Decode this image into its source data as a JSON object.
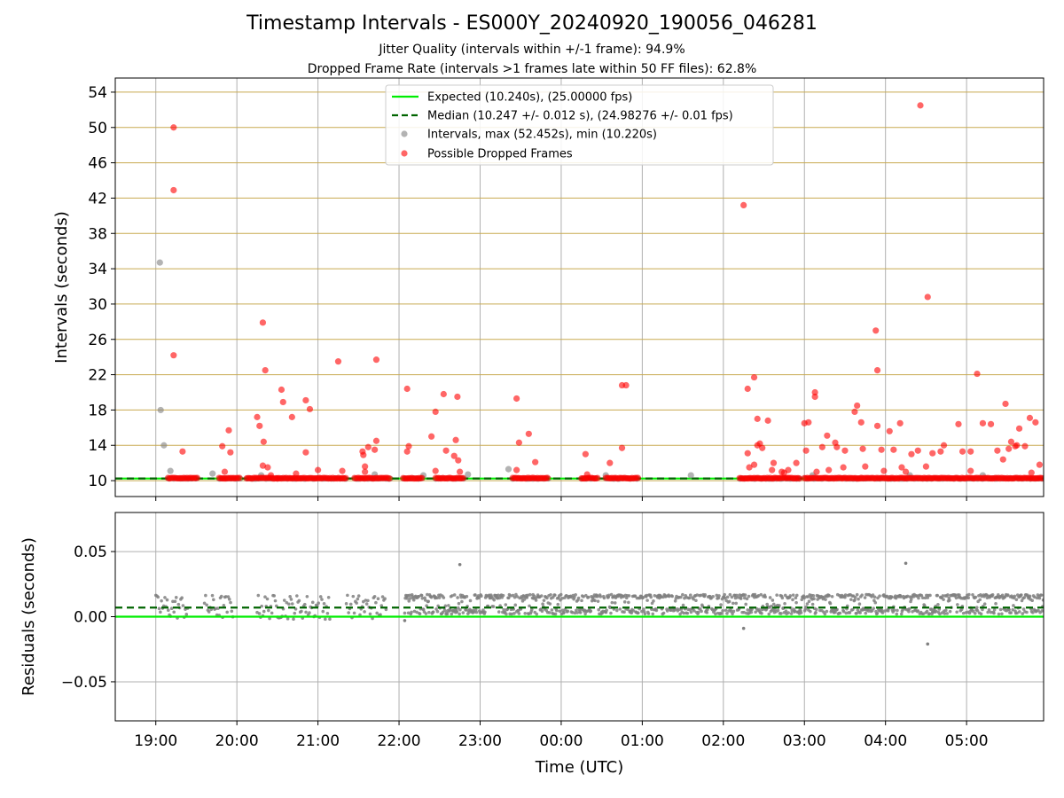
{
  "header": {
    "title": "Timestamp Intervals - ES000Y_20240920_190056_046281",
    "subtitle_jitter": "Jitter Quality (intervals within +/-1 frame): 94.9%",
    "subtitle_dropped": "Dropped Frame Rate (intervals >1 frames late within 50 FF files): 62.8%"
  },
  "colors": {
    "expected_line": "#00ee00",
    "median_line": "#006400",
    "intervals_points": "#808080",
    "dropped_points": "#ff0000",
    "hgrid_top": "#c8aa50",
    "grid": "#b0b0b0"
  },
  "chart_data": [
    {
      "type": "scatter",
      "panel": "top",
      "ylabel": "Intervals (seconds)",
      "xlabel": "",
      "ylim": [
        8.2,
        55.6
      ],
      "xlim": [
        18.5,
        29.95
      ],
      "x_ticks": [
        19,
        20,
        21,
        22,
        23,
        24,
        25,
        26,
        27,
        28,
        29
      ],
      "x_tick_labels": [
        "19:00",
        "20:00",
        "21:00",
        "22:00",
        "23:00",
        "00:00",
        "01:00",
        "02:00",
        "03:00",
        "04:00",
        "05:00"
      ],
      "y_ticks": [
        10,
        14,
        18,
        22,
        26,
        30,
        34,
        38,
        42,
        46,
        50,
        54
      ],
      "y_tick_labels": [
        "10",
        "14",
        "18",
        "22",
        "26",
        "30",
        "34",
        "38",
        "42",
        "46",
        "50",
        "54"
      ],
      "grid": true,
      "legend_position": "top-center",
      "legend": [
        "Expected (10.240s), (25.00000 fps)",
        "Median (10.247 +/- 0.012 s), (24.98276 +/- 0.01 fps)",
        "Intervals, max (52.452s), min (10.220s)",
        "Possible Dropped Frames"
      ],
      "reference_lines": {
        "expected": 10.24,
        "median": 10.247
      },
      "series": [
        {
          "name": "Intervals, max (52.452s), min (10.220s)",
          "points": [
            [
              19.05,
              34.7
            ],
            [
              19.06,
              18.0
            ],
            [
              19.1,
              14.0
            ],
            [
              19.18,
              11.1
            ],
            [
              19.7,
              10.8
            ],
            [
              20.3,
              10.6
            ],
            [
              21.7,
              10.7
            ],
            [
              22.3,
              10.6
            ],
            [
              22.85,
              10.7
            ],
            [
              23.35,
              11.3
            ],
            [
              24.55,
              10.6
            ],
            [
              25.6,
              10.6
            ],
            [
              27.1,
              10.6
            ],
            [
              28.3,
              10.6
            ],
            [
              29.2,
              10.6
            ]
          ]
        },
        {
          "name": "Possible Dropped Frames",
          "band_ranges": [
            [
              19.15,
              19.52
            ],
            [
              19.78,
              20.05
            ],
            [
              20.12,
              20.5
            ],
            [
              20.5,
              21.02
            ],
            [
              21.02,
              21.35
            ],
            [
              21.45,
              21.9
            ],
            [
              22.05,
              22.3
            ],
            [
              22.45,
              22.8
            ],
            [
              23.4,
              23.85
            ],
            [
              24.25,
              24.45
            ],
            [
              24.55,
              24.95
            ],
            [
              26.2,
              26.95
            ],
            [
              27.0,
              29.95
            ]
          ],
          "points": [
            [
              19.22,
              50.0
            ],
            [
              19.22,
              42.9
            ],
            [
              19.22,
              24.2
            ],
            [
              19.33,
              13.3
            ],
            [
              19.82,
              13.9
            ],
            [
              19.9,
              15.7
            ],
            [
              19.92,
              13.2
            ],
            [
              19.85,
              11.0
            ],
            [
              20.25,
              17.2
            ],
            [
              20.28,
              16.2
            ],
            [
              20.32,
              27.9
            ],
            [
              20.35,
              22.5
            ],
            [
              20.33,
              14.4
            ],
            [
              20.32,
              11.7
            ],
            [
              20.38,
              11.5
            ],
            [
              20.42,
              10.6
            ],
            [
              20.55,
              20.3
            ],
            [
              20.57,
              18.9
            ],
            [
              20.68,
              17.2
            ],
            [
              20.73,
              10.8
            ],
            [
              20.85,
              19.1
            ],
            [
              20.9,
              18.1
            ],
            [
              20.85,
              13.2
            ],
            [
              21.0,
              11.2
            ],
            [
              21.25,
              23.5
            ],
            [
              21.3,
              11.1
            ],
            [
              21.56,
              12.9
            ],
            [
              21.58,
              11.6
            ],
            [
              21.58,
              11.0
            ],
            [
              21.62,
              13.8
            ],
            [
              21.55,
              13.3
            ],
            [
              21.72,
              23.7
            ],
            [
              21.72,
              14.5
            ],
            [
              21.7,
              13.5
            ],
            [
              22.1,
              20.4
            ],
            [
              22.12,
              13.9
            ],
            [
              22.1,
              13.3
            ],
            [
              22.4,
              15.0
            ],
            [
              22.45,
              17.8
            ],
            [
              22.45,
              11.1
            ],
            [
              22.55,
              19.8
            ],
            [
              22.58,
              13.4
            ],
            [
              22.68,
              12.8
            ],
            [
              22.7,
              14.6
            ],
            [
              22.72,
              19.5
            ],
            [
              22.73,
              12.3
            ],
            [
              22.75,
              11.0
            ],
            [
              23.45,
              19.3
            ],
            [
              23.48,
              14.3
            ],
            [
              23.45,
              11.2
            ],
            [
              23.6,
              15.3
            ],
            [
              23.68,
              12.1
            ],
            [
              24.3,
              13.0
            ],
            [
              24.32,
              10.7
            ],
            [
              24.6,
              12.0
            ],
            [
              24.75,
              13.7
            ],
            [
              24.75,
              20.8
            ],
            [
              24.8,
              20.8
            ],
            [
              26.25,
              41.2
            ],
            [
              26.3,
              20.4
            ],
            [
              26.32,
              11.5
            ],
            [
              26.38,
              21.7
            ],
            [
              26.38,
              11.8
            ],
            [
              26.42,
              14.0
            ],
            [
              26.42,
              17.0
            ],
            [
              26.45,
              14.2
            ],
            [
              26.48,
              13.7
            ],
            [
              26.3,
              13.1
            ],
            [
              26.55,
              16.8
            ],
            [
              26.6,
              11.2
            ],
            [
              26.62,
              12.0
            ],
            [
              26.72,
              11.0
            ],
            [
              26.75,
              10.9
            ],
            [
              26.8,
              11.2
            ],
            [
              26.9,
              12.0
            ],
            [
              27.0,
              16.5
            ],
            [
              27.05,
              16.6
            ],
            [
              27.02,
              13.4
            ],
            [
              27.13,
              20.0
            ],
            [
              27.13,
              19.5
            ],
            [
              27.15,
              11.0
            ],
            [
              27.22,
              13.8
            ],
            [
              27.28,
              15.1
            ],
            [
              27.3,
              11.2
            ],
            [
              27.38,
              14.3
            ],
            [
              27.4,
              13.8
            ],
            [
              27.48,
              11.5
            ],
            [
              27.5,
              13.4
            ],
            [
              27.62,
              17.8
            ],
            [
              27.65,
              18.5
            ],
            [
              27.7,
              16.6
            ],
            [
              27.72,
              13.6
            ],
            [
              27.75,
              11.6
            ],
            [
              27.88,
              27.0
            ],
            [
              27.9,
              22.5
            ],
            [
              27.9,
              16.2
            ],
            [
              27.95,
              13.5
            ],
            [
              27.98,
              11.1
            ],
            [
              28.05,
              15.6
            ],
            [
              28.1,
              13.5
            ],
            [
              28.18,
              16.5
            ],
            [
              28.2,
              11.5
            ],
            [
              28.25,
              11.0
            ],
            [
              28.32,
              13.0
            ],
            [
              28.4,
              13.4
            ],
            [
              28.43,
              52.5
            ],
            [
              28.52,
              30.8
            ],
            [
              28.5,
              11.6
            ],
            [
              28.58,
              13.1
            ],
            [
              28.68,
              13.3
            ],
            [
              28.72,
              14.0
            ],
            [
              28.9,
              16.4
            ],
            [
              28.95,
              13.3
            ],
            [
              29.05,
              13.3
            ],
            [
              29.05,
              11.1
            ],
            [
              29.13,
              22.1
            ],
            [
              29.2,
              16.5
            ],
            [
              29.3,
              16.4
            ],
            [
              29.38,
              13.4
            ],
            [
              29.45,
              12.4
            ],
            [
              29.48,
              18.7
            ],
            [
              29.52,
              13.6
            ],
            [
              29.55,
              14.4
            ],
            [
              29.6,
              13.9
            ],
            [
              29.62,
              14.0
            ],
            [
              29.65,
              15.9
            ],
            [
              29.72,
              13.9
            ],
            [
              29.78,
              17.1
            ],
            [
              29.85,
              16.6
            ],
            [
              29.8,
              10.9
            ],
            [
              29.9,
              11.8
            ]
          ]
        }
      ]
    },
    {
      "type": "scatter",
      "panel": "bottom",
      "ylabel": "Residuals (seconds)",
      "xlabel": "Time (UTC)",
      "ylim": [
        -0.08,
        0.08
      ],
      "xlim": [
        18.5,
        29.95
      ],
      "x_ticks": [
        19,
        20,
        21,
        22,
        23,
        24,
        25,
        26,
        27,
        28,
        29
      ],
      "x_tick_labels": [
        "19:00",
        "20:00",
        "21:00",
        "22:00",
        "23:00",
        "00:00",
        "01:00",
        "02:00",
        "03:00",
        "04:00",
        "05:00"
      ],
      "y_ticks": [
        0.05,
        0.0,
        -0.05
      ],
      "y_tick_labels": [
        "0.05",
        "0.00",
        "−0.05"
      ],
      "grid": true,
      "reference_lines": {
        "expected": 0.0,
        "median": 0.007
      },
      "series": [
        {
          "name": "",
          "band_ranges": [
            [
              19.0,
              19.4
            ],
            [
              19.6,
              19.95
            ],
            [
              20.25,
              21.15
            ],
            [
              21.35,
              21.85
            ],
            [
              22.07,
              29.95
            ]
          ],
          "points": [
            [
              22.75,
              0.04
            ],
            [
              26.25,
              -0.009
            ],
            [
              28.25,
              0.041
            ],
            [
              28.52,
              -0.021
            ],
            [
              22.07,
              -0.003
            ]
          ]
        }
      ]
    }
  ]
}
